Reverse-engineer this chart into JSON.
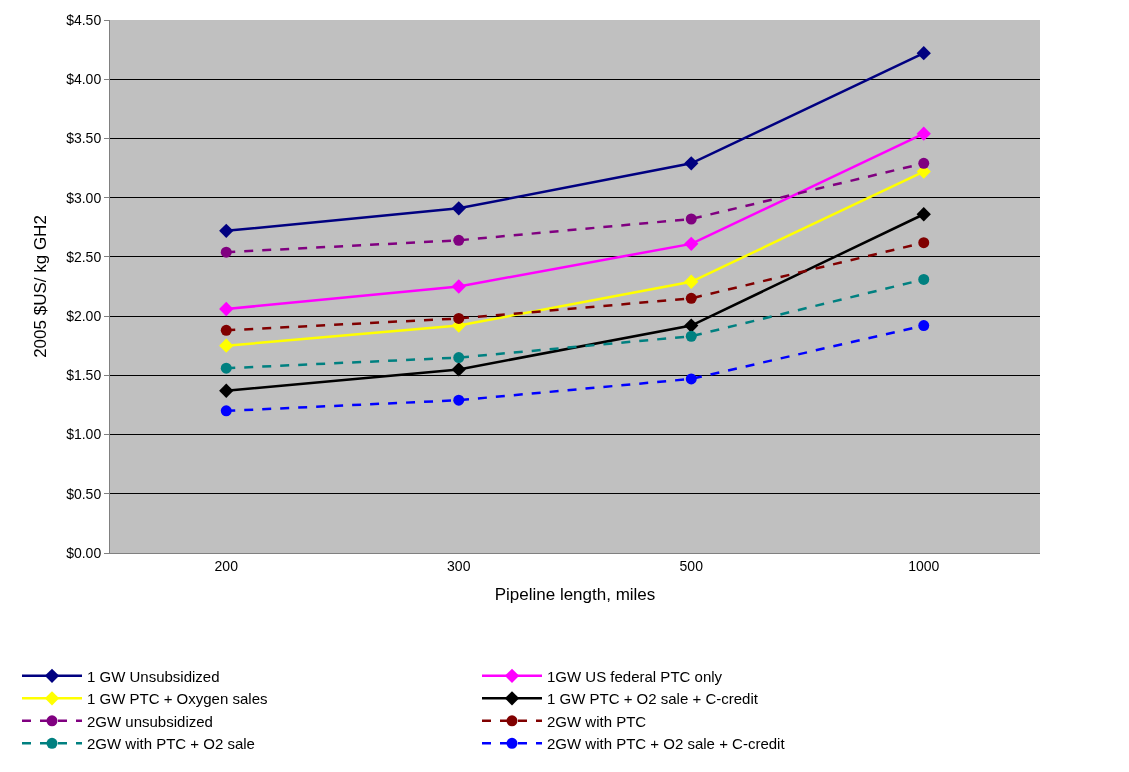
{
  "chart_data": {
    "type": "line",
    "xlabel": "Pipeline length, miles",
    "ylabel": "2005 $US/ kg GH2",
    "categories": [
      "200",
      "300",
      "500",
      "1000"
    ],
    "ylim": [
      0,
      4.5
    ],
    "yticks": [
      {
        "value": 0,
        "label": "$0.00"
      },
      {
        "value": 0.5,
        "label": "$0.50"
      },
      {
        "value": 1,
        "label": "$1.00"
      },
      {
        "value": 1.5,
        "label": "$1.50"
      },
      {
        "value": 2,
        "label": "$2.00"
      },
      {
        "value": 2.5,
        "label": "$2.50"
      },
      {
        "value": 3,
        "label": "$3.00"
      },
      {
        "value": 3.5,
        "label": "$3.50"
      },
      {
        "value": 4,
        "label": "$4.00"
      },
      {
        "value": 4.5,
        "label": "$4.50"
      }
    ],
    "grid": "y",
    "legend": "bottom",
    "series": [
      {
        "name": "1 GW Unsubsidized",
        "color": "#000080",
        "values": [
          2.72,
          2.91,
          3.29,
          4.22
        ],
        "marker": "diamond",
        "line_style": "solid"
      },
      {
        "name": "1GW US federal PTC only",
        "color": "#ff00ff",
        "values": [
          2.06,
          2.25,
          2.61,
          3.54
        ],
        "marker": "diamond",
        "line_style": "solid"
      },
      {
        "name": "1 GW PTC + Oxygen sales",
        "color": "#ffff00",
        "values": [
          1.75,
          1.92,
          2.29,
          3.22
        ],
        "marker": "diamond",
        "line_style": "solid"
      },
      {
        "name": "1 GW PTC + O2 sale + C-credit",
        "color": "#000000",
        "values": [
          1.37,
          1.55,
          1.92,
          2.86
        ],
        "marker": "diamond",
        "line_style": "solid"
      },
      {
        "name": "2GW unsubsidized",
        "color": "#800080",
        "values": [
          2.54,
          2.64,
          2.82,
          3.29
        ],
        "marker": "circle",
        "line_style": "dashed"
      },
      {
        "name": "2GW with PTC",
        "color": "#800000",
        "values": [
          1.88,
          1.98,
          2.15,
          2.62
        ],
        "marker": "circle",
        "line_style": "dashed"
      },
      {
        "name": "2GW with PTC + O2 sale",
        "color": "#008080",
        "values": [
          1.56,
          1.65,
          1.83,
          2.31
        ],
        "marker": "circle",
        "line_style": "dashed"
      },
      {
        "name": "2GW with PTC + O2 sale + C-credit",
        "color": "#0000ff",
        "values": [
          1.2,
          1.29,
          1.47,
          1.92
        ],
        "marker": "circle",
        "line_style": "dashed"
      }
    ]
  }
}
